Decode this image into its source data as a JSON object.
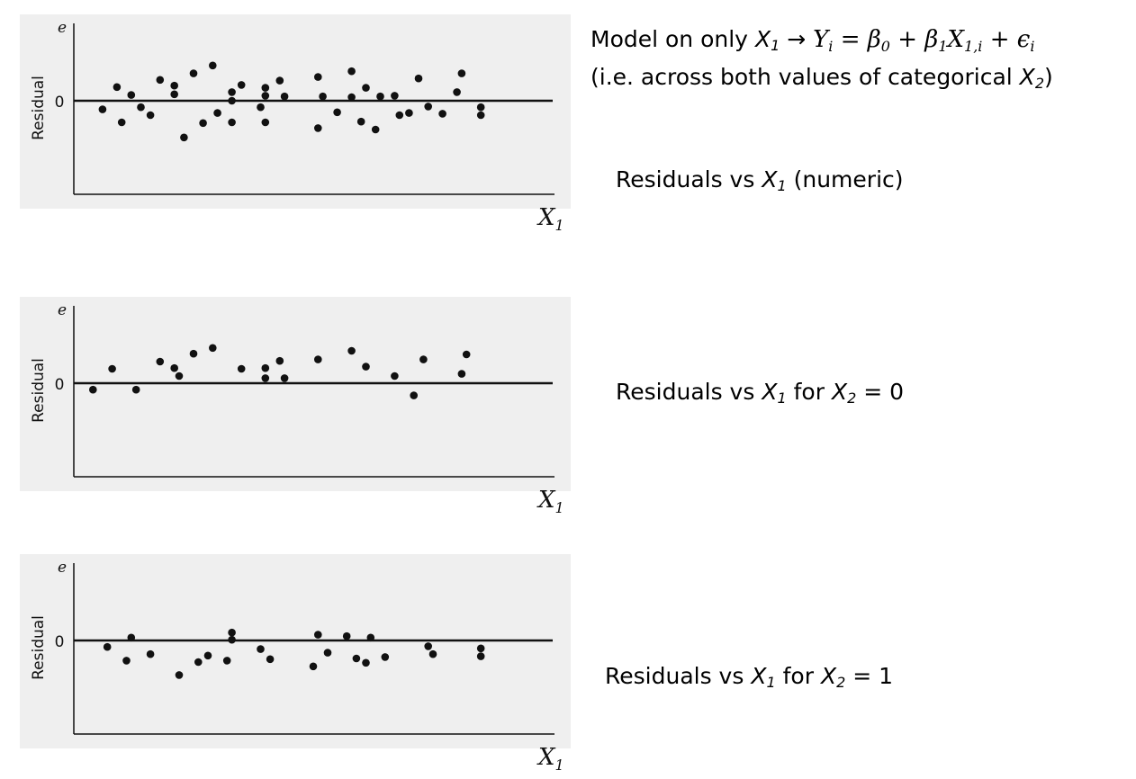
{
  "header": {
    "model_prefix": "Model on only",
    "x1": "X",
    "x1_sub": "1",
    "arrow": "→",
    "eq": {
      "Y": "Y",
      "i": "i",
      "equals": "=",
      "beta": "β",
      "zero": "0",
      "plus": "+",
      "one": "1",
      "X": "X",
      "sub_1i": "1,i",
      "eps": "ϵ"
    },
    "line2_prefix": "(i.e. across both values of categorical",
    "x2": "X",
    "x2_sub": "2",
    "line2_suffix": ")"
  },
  "captions": [
    {
      "prefix": "Residuals vs",
      "var": "X",
      "sub": "1",
      "suffix": "(numeric)",
      "var2": "",
      "sub2": "",
      "tail": ""
    },
    {
      "prefix": "Residuals vs",
      "var": "X",
      "sub": "1",
      "suffix": "for",
      "var2": "X",
      "sub2": "2",
      "tail": "= 0"
    },
    {
      "prefix": "Residuals vs",
      "var": "X",
      "sub": "1",
      "suffix": "for",
      "var2": "X",
      "sub2": "2",
      "tail": "= 1"
    }
  ],
  "colors": {
    "panel_bg": "#efefef",
    "ink": "#111111"
  },
  "chart_data": [
    {
      "type": "scatter",
      "xlabel": "X1",
      "ylabel": "Residual",
      "y_axis_letter": "e",
      "y_tick_label": "0",
      "xlim": [
        0,
        100
      ],
      "ylim": [
        -100,
        100
      ],
      "reference_line_y": 0,
      "grid": false,
      "points": [
        [
          6,
          -12
        ],
        [
          9,
          19
        ],
        [
          10,
          -30
        ],
        [
          12,
          8
        ],
        [
          14,
          -9
        ],
        [
          16,
          -20
        ],
        [
          18,
          29
        ],
        [
          21,
          21
        ],
        [
          21,
          9
        ],
        [
          23,
          -51
        ],
        [
          25,
          38
        ],
        [
          27,
          -31
        ],
        [
          29,
          49
        ],
        [
          30,
          -17
        ],
        [
          33,
          12
        ],
        [
          33,
          0
        ],
        [
          33,
          -30
        ],
        [
          35,
          22
        ],
        [
          39,
          -9
        ],
        [
          40,
          18
        ],
        [
          40,
          7
        ],
        [
          40,
          -30
        ],
        [
          43,
          28
        ],
        [
          44,
          6
        ],
        [
          51,
          33
        ],
        [
          51,
          -38
        ],
        [
          52,
          6
        ],
        [
          55,
          -16
        ],
        [
          58,
          41
        ],
        [
          58,
          5
        ],
        [
          60,
          -29
        ],
        [
          61,
          18
        ],
        [
          63,
          -40
        ],
        [
          64,
          6
        ],
        [
          67,
          7
        ],
        [
          68,
          -20
        ],
        [
          70,
          -17
        ],
        [
          72,
          31
        ],
        [
          74,
          -8
        ],
        [
          77,
          -18
        ],
        [
          80,
          12
        ],
        [
          81,
          38
        ],
        [
          85,
          -9
        ],
        [
          85,
          -20
        ]
      ]
    },
    {
      "type": "scatter",
      "xlabel": "X1",
      "ylabel": "Residual",
      "y_axis_letter": "e",
      "y_tick_label": "0",
      "xlim": [
        0,
        100
      ],
      "ylim": [
        -100,
        100
      ],
      "reference_line_y": 0,
      "grid": false,
      "points": [
        [
          4,
          -9
        ],
        [
          8,
          20
        ],
        [
          13,
          -9
        ],
        [
          18,
          30
        ],
        [
          21,
          21
        ],
        [
          22,
          10
        ],
        [
          25,
          41
        ],
        [
          29,
          49
        ],
        [
          35,
          20
        ],
        [
          40,
          21
        ],
        [
          40,
          7
        ],
        [
          43,
          31
        ],
        [
          44,
          7
        ],
        [
          51,
          33
        ],
        [
          58,
          45
        ],
        [
          61,
          23
        ],
        [
          67,
          10
        ],
        [
          71,
          -17
        ],
        [
          73,
          33
        ],
        [
          81,
          13
        ],
        [
          82,
          40
        ]
      ]
    },
    {
      "type": "scatter",
      "xlabel": "X1",
      "ylabel": "Residual",
      "y_axis_letter": "e",
      "y_tick_label": "0",
      "xlim": [
        0,
        100
      ],
      "ylim": [
        -100,
        100
      ],
      "reference_line_y": 0,
      "grid": false,
      "points": [
        [
          7,
          -9
        ],
        [
          11,
          -28
        ],
        [
          12,
          4
        ],
        [
          16,
          -19
        ],
        [
          22,
          -48
        ],
        [
          26,
          -30
        ],
        [
          28,
          -21
        ],
        [
          32,
          -28
        ],
        [
          33,
          11
        ],
        [
          33,
          1
        ],
        [
          39,
          -12
        ],
        [
          41,
          -26
        ],
        [
          50,
          -36
        ],
        [
          51,
          8
        ],
        [
          53,
          -17
        ],
        [
          57,
          6
        ],
        [
          59,
          -25
        ],
        [
          61,
          -31
        ],
        [
          62,
          4
        ],
        [
          65,
          -23
        ],
        [
          74,
          -8
        ],
        [
          75,
          -19
        ],
        [
          85,
          -11
        ],
        [
          85,
          -22
        ]
      ]
    }
  ]
}
